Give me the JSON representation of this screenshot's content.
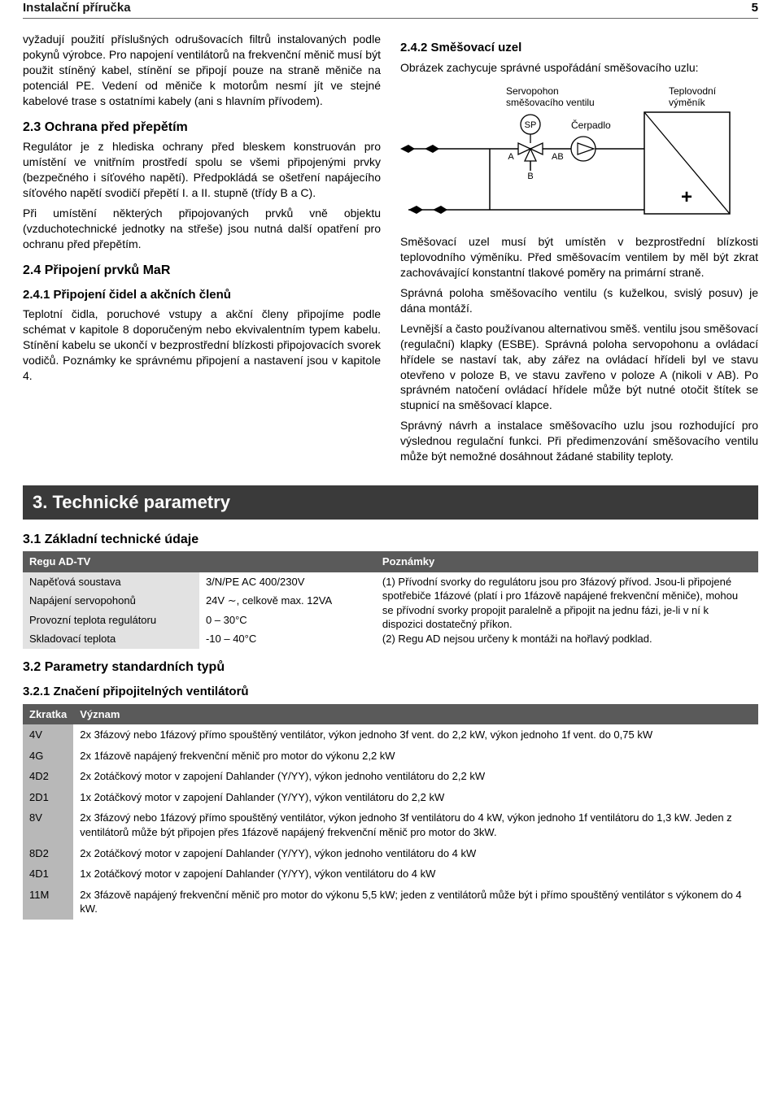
{
  "header": {
    "title": "Instalační příručka",
    "page": "5"
  },
  "left": {
    "p1": "vyžadují použití příslušných odrušovacích filtrů instalovaných podle pokynů výrobce. Pro napojení ventilátorů na frekvenční měnič musí být použit stíněný kabel, stínění se připojí pouze na straně měniče na potenciál PE. Vedení od měniče k motorům nesmí jít ve stejné kabelové trase s ostatními kabely (ani s hlavním přívodem).",
    "h23": "2.3  Ochrana před přepětím",
    "p2": "Regulátor je z hlediska ochrany před bleskem konstruován pro umístění ve vnitřním prostředí spolu se všemi připojenými prvky (bezpečného i síťového napětí). Předpokládá se ošetření napájecího síťového napětí svodičí přepětí I. a II. stupně (třídy B a C).",
    "p3": "Při umístění některých připojovaných prvků vně objektu (vzduchotechnické jednotky na střeše) jsou nutná další opatření pro ochranu před přepětím.",
    "h24": "2.4  Připojení prvků MaR",
    "h241": "2.4.1  Připojení čidel a akčních členů",
    "p4": "Teplotní čidla, poruchové vstupy a akční členy připojíme podle schémat v kapitole 8 doporučeným nebo ekvivalentním typem kabelu. Stínění kabelu se ukončí v bezprostřední blízkosti připojovacích svorek vodičů. Poznámky ke správnému připojení a nastavení jsou v kapitole 4."
  },
  "right": {
    "h242": "2.4.2  Směšovací uzel",
    "p1": "Obrázek zachycuje správné uspořádání směšovacího uzlu:",
    "diagram": {
      "servo": "Servopohon směšovacího ventilu",
      "cerpadlo": "Čerpadlo",
      "teplo": "Teplovodní výměník",
      "SP": "SP",
      "A": "A",
      "B": "B",
      "AB": "AB",
      "plus": "+"
    },
    "p2": "Směšovací uzel musí být umístěn v bezprostřední blízkosti teplovodního výměníku. Před směšovacím ventilem by měl být zkrat zachovávající konstantní tlakové poměry na primární straně.",
    "p3": "Správná poloha směšovacího ventilu (s kuželkou, svislý posuv) je dána montáží.",
    "p4": "Levnější a často používanou alternativou směš. ventilu jsou směšovací (regulační) klapky (ESBE). Správná poloha servopohonu a ovládací hřídele se nastaví tak, aby zářez na ovládací hřídeli byl ve stavu otevřeno v poloze B, ve stavu zavřeno v poloze A (nikoli v AB). Po správném natočení ovládací hřídele může být nutné otočit štítek se stupnicí na směšovací klapce.",
    "p5": "Správný návrh a instalace směšovacího uzlu jsou rozhodující pro výslednou regulační funkci. Při předimenzování směšovacího ventilu může být nemožné dosáhnout žádané stability teploty."
  },
  "sectionBar": "3. Technické parametry",
  "s31": {
    "title": "3.1  Základní technické údaje",
    "col1": "Regu AD-TV",
    "col3": "Poznámky",
    "rows": [
      {
        "a": "Napěťová soustava",
        "b": "3/N/PE AC 400/230V"
      },
      {
        "a": "Napájení servopohonů",
        "b": "24V ∼, celkově max. 12VA"
      },
      {
        "a": "Provozní teplota regulátoru",
        "b": "0 – 30°C"
      },
      {
        "a": "Skladovací teplota",
        "b": "-10 – 40°C"
      }
    ],
    "note": "(1) Přívodní svorky do regulátoru jsou pro 3fázový přívod. Jsou-li připojené spotřebiče 1fázové (platí i pro 1fázově napájené frekvenční měniče), mohou se přívodní svorky propojit paralelně a připojit na jednu fázi, je-li v ní k dispozici dostatečný příkon.\n(2) Regu AD nejsou určeny k montáži na hořlavý podklad."
  },
  "s32": {
    "title": "3.2  Parametry standardních typů",
    "sub": "3.2.1  Značení připojitelných ventilátorů",
    "col1": "Zkratka",
    "col2": "Význam",
    "rows": [
      {
        "c": "4V",
        "d": "2x 3fázový nebo 1fázový přímo spouštěný ventilátor, výkon jednoho 3f vent. do 2,2 kW, výkon jednoho 1f vent. do 0,75 kW"
      },
      {
        "c": "4G",
        "d": "2x 1fázově napájený frekvenční měnič pro motor do výkonu 2,2 kW"
      },
      {
        "c": "4D2",
        "d": "2x 2otáčkový motor v zapojení Dahlander (Y/YY), výkon jednoho ventilátoru do 2,2 kW"
      },
      {
        "c": "2D1",
        "d": "1x 2otáčkový motor v zapojení Dahlander (Y/YY), výkon ventilátoru do 2,2 kW"
      },
      {
        "c": "8V",
        "d": "2x 3fázový nebo 1fázový přímo spouštěný ventilátor, výkon jednoho 3f ventilátoru do 4 kW, výkon jednoho 1f ventilátoru do 1,3 kW. Jeden z ventilátorů může být připojen přes 1fázově napájený frekvenční měnič pro motor do 3kW."
      },
      {
        "c": "8D2",
        "d": "2x 2otáčkový motor v zapojení Dahlander (Y/YY), výkon jednoho ventilátoru do 4 kW"
      },
      {
        "c": "4D1",
        "d": "1x 2otáčkový motor v zapojení Dahlander (Y/YY), výkon ventilátoru do 4 kW"
      },
      {
        "c": "11M",
        "d": "2x 3fázově napájený frekvenční měnič pro motor do výkonu 5,5 kW; jeden z ventilátorů může být i přímo spouštěný ventilátor s výkonem do 4 kW."
      }
    ]
  }
}
